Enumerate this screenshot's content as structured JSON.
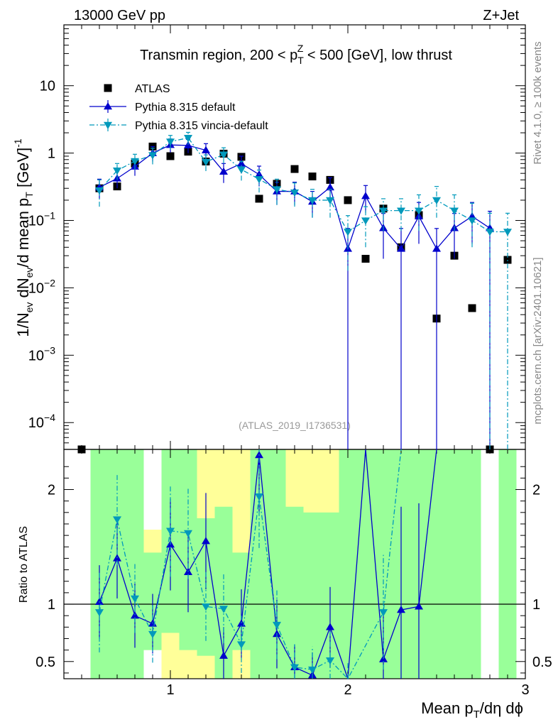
{
  "header": {
    "energy_label": "13000 GeV pp",
    "process_label": "Z+Jet"
  },
  "side_labels": {
    "rivet": "Rivet 4.1.0, ≥ 100k events",
    "source": "mcplots.cern.ch [arXiv:2401.10621]"
  },
  "chart_data": {
    "type": "scatter",
    "title_parts": {
      "pre": "Transmin region, 200 < p",
      "sub": "T",
      "sup": "Z",
      "post": " < 500 [GeV], low thrust"
    },
    "watermark": "(ATLAS_2019_I1736531)",
    "xlabel": {
      "main": "Mean p",
      "sub": "T",
      "rest": "/dη dϕ"
    },
    "ylabel_main": {
      "a": "1/N",
      "a_sub": "ev",
      "b": " dN",
      "b_sub": "ev",
      "c": "/d mean p",
      "c_sub": "T",
      "d": " [GeV]",
      "d_sup": "-1"
    },
    "ylabel_ratio": "Ratio to ATLAS",
    "xlim": [
      0.4,
      3.0
    ],
    "ylim_main": [
      4e-05,
      80
    ],
    "ylim_ratio": [
      0.35,
      2.35
    ],
    "x_ticks": [
      {
        "v": 1,
        "label": "1"
      },
      {
        "v": 2,
        "label": "2"
      },
      {
        "v": 3,
        "label": "3"
      }
    ],
    "y_ticks_main": [
      {
        "v": 10,
        "base": "10",
        "exp": ""
      },
      {
        "v": 1,
        "base": "1",
        "exp": ""
      },
      {
        "v": 0.1,
        "base": "10",
        "exp": "−1"
      },
      {
        "v": 0.01,
        "base": "10",
        "exp": "−2"
      },
      {
        "v": 0.001,
        "base": "10",
        "exp": "−3"
      },
      {
        "v": 0.0001,
        "base": "10",
        "exp": "−4"
      }
    ],
    "y_ticks_ratio": [
      {
        "v": 2,
        "label": "2"
      },
      {
        "v": 1,
        "label": "1"
      },
      {
        "v": 0.5,
        "label": "0.5"
      }
    ],
    "legend": [
      {
        "name": "ATLAS",
        "marker": "square",
        "color": "#000000"
      },
      {
        "name": "Pythia 8.315 default",
        "marker": "triangle-up",
        "color": "#0000cc"
      },
      {
        "name": "Pythia 8.315 vincia-default",
        "marker": "triangle-down",
        "color": "#0099bb"
      }
    ],
    "series": [
      {
        "name": "ATLAS",
        "x": [
          0.5,
          0.6,
          0.7,
          0.8,
          0.9,
          1.0,
          1.1,
          1.2,
          1.3,
          1.4,
          1.5,
          1.6,
          1.7,
          1.8,
          1.9,
          2.0,
          2.1,
          2.2,
          2.3,
          2.4,
          2.5,
          2.6,
          2.7,
          2.8,
          2.9
        ],
        "y": [
          4e-05,
          0.3,
          0.32,
          0.7,
          1.25,
          0.9,
          1.05,
          0.75,
          0.98,
          0.88,
          0.21,
          0.35,
          0.58,
          0.45,
          0.4,
          0.2,
          0.027,
          0.15,
          0.04,
          0.12,
          0.0035,
          0.03,
          0.005,
          4e-05,
          0.026
        ]
      },
      {
        "name": "Pythia 8.315 default",
        "x": [
          0.6,
          0.7,
          0.8,
          0.9,
          1.0,
          1.1,
          1.2,
          1.3,
          1.4,
          1.5,
          1.6,
          1.7,
          1.8,
          1.9,
          2.0,
          2.1,
          2.2,
          2.3,
          2.4,
          2.5,
          2.6,
          2.7,
          2.8
        ],
        "y": [
          0.31,
          0.42,
          0.63,
          1.0,
          1.32,
          1.3,
          1.1,
          0.53,
          0.7,
          0.48,
          0.27,
          0.27,
          0.19,
          0.31,
          0.038,
          0.23,
          0.077,
          0.038,
          0.115,
          0.038,
          0.077,
          0.115,
          0.077
        ],
        "err_lo": [
          0.1,
          0.12,
          0.17,
          0.25,
          0.3,
          0.3,
          0.28,
          0.17,
          0.2,
          0.16,
          0.1,
          0.1,
          0.08,
          0.12,
          0.038,
          0.1,
          0.05,
          0.038,
          0.07,
          0.038,
          0.05,
          0.07,
          0.077
        ],
        "err_hi": [
          0.1,
          0.12,
          0.17,
          0.25,
          0.3,
          0.3,
          0.28,
          0.17,
          0.2,
          0.16,
          0.1,
          0.1,
          0.08,
          0.12,
          0.038,
          0.1,
          0.05,
          0.038,
          0.07,
          0.038,
          0.05,
          0.07,
          0.06
        ]
      },
      {
        "name": "Pythia 8.315 vincia-default",
        "x": [
          0.6,
          0.7,
          0.8,
          0.9,
          1.0,
          1.1,
          1.2,
          1.3,
          1.4,
          1.5,
          1.6,
          1.7,
          1.8,
          1.9,
          2.0,
          2.1,
          2.2,
          2.3,
          2.4,
          2.5,
          2.6,
          2.7,
          2.8,
          2.9
        ],
        "y": [
          0.28,
          0.55,
          0.76,
          0.93,
          1.48,
          1.68,
          0.74,
          0.95,
          0.57,
          0.41,
          0.29,
          0.26,
          0.2,
          0.2,
          0.068,
          0.1,
          0.14,
          0.14,
          0.14,
          0.2,
          0.14,
          0.1,
          0.068,
          0.068
        ],
        "err_lo": [
          0.12,
          0.15,
          0.2,
          0.25,
          0.35,
          0.35,
          0.2,
          0.25,
          0.18,
          0.15,
          0.12,
          0.1,
          0.09,
          0.09,
          0.05,
          0.06,
          0.07,
          0.07,
          0.07,
          0.09,
          0.07,
          0.06,
          0.068,
          0.068
        ],
        "err_hi": [
          0.12,
          0.15,
          0.2,
          0.25,
          0.35,
          0.35,
          0.2,
          0.25,
          0.18,
          0.15,
          0.12,
          0.1,
          0.09,
          0.09,
          0.05,
          0.06,
          0.07,
          0.07,
          0.1,
          0.12,
          0.1,
          0.08,
          0.06,
          0.06
        ]
      }
    ],
    "ratio_series": [
      {
        "name": "Pythia 8.315 default",
        "x": [
          0.6,
          0.7,
          0.8,
          0.9,
          1.0,
          1.1,
          1.2,
          1.3,
          1.4,
          1.5,
          1.6,
          1.7,
          1.8,
          1.9,
          2.0,
          2.1,
          2.2,
          2.3,
          2.4,
          2.5
        ],
        "y": [
          1.02,
          1.4,
          0.9,
          0.83,
          1.52,
          1.28,
          1.55,
          0.55,
          0.83,
          2.3,
          0.74,
          0.45,
          0.38,
          0.8,
          0.1,
          8.0,
          0.52,
          0.95,
          0.98,
          8.0
        ],
        "err": [
          0.32,
          0.35,
          0.28,
          0.26,
          0.4,
          0.35,
          0.42,
          0.25,
          0.3,
          0.5,
          0.3,
          0.2,
          0.2,
          0.35,
          0.1,
          0.1,
          0.4,
          0.9,
          0.9,
          0.1
        ]
      },
      {
        "name": "Pythia 8.315 vincia-default",
        "x": [
          0.6,
          0.7,
          0.8,
          0.9,
          1.0,
          1.1,
          1.2,
          1.3,
          1.4,
          1.5,
          1.6,
          1.7,
          1.8,
          1.9,
          2.0,
          2.2,
          2.3
        ],
        "y": [
          0.93,
          1.74,
          1.05,
          0.74,
          1.64,
          1.62,
          0.98,
          0.96,
          0.65,
          1.94,
          0.82,
          0.45,
          0.43,
          0.51,
          0.3,
          0.93,
          3.5
        ],
        "err": [
          0.35,
          0.4,
          0.3,
          0.25,
          0.4,
          0.4,
          0.3,
          0.3,
          0.25,
          0.45,
          0.3,
          0.2,
          0.2,
          0.25,
          0.2,
          0.5,
          1.0
        ]
      }
    ],
    "uncertainty_bands": {
      "outer_color": "#ffff99",
      "inner_color": "#99ff99",
      "bins": [
        {
          "x0": 0.55,
          "x1": 0.65,
          "outer": [
            0.35,
            2.35
          ],
          "inner": [
            0.35,
            2.35
          ]
        },
        {
          "x0": 0.65,
          "x1": 0.75,
          "outer": [
            0.35,
            2.35
          ],
          "inner": [
            0.35,
            2.35
          ]
        },
        {
          "x0": 0.75,
          "x1": 0.85,
          "outer": [
            0.35,
            2.35
          ],
          "inner": [
            0.35,
            2.35
          ]
        },
        {
          "x0": 0.85,
          "x1": 0.95,
          "outer": [
            0.6,
            1.65
          ],
          "inner": [
            0.6,
            1.45
          ]
        },
        {
          "x0": 0.95,
          "x1": 1.05,
          "outer": [
            0.35,
            2.35
          ],
          "inner": [
            0.75,
            2.35
          ]
        },
        {
          "x0": 1.05,
          "x1": 1.15,
          "outer": [
            0.35,
            2.35
          ],
          "inner": [
            0.6,
            2.35
          ]
        },
        {
          "x0": 1.15,
          "x1": 1.25,
          "outer": [
            0.35,
            2.35
          ],
          "inner": [
            0.55,
            1.75
          ]
        },
        {
          "x0": 1.25,
          "x1": 1.35,
          "outer": [
            0.35,
            2.35
          ],
          "inner": [
            0.35,
            1.85
          ]
        },
        {
          "x0": 1.35,
          "x1": 1.45,
          "outer": [
            0.35,
            2.35
          ],
          "inner": [
            0.6,
            1.45
          ]
        },
        {
          "x0": 1.45,
          "x1": 1.55,
          "outer": [
            0.35,
            2.35
          ],
          "inner": [
            0.35,
            2.35
          ]
        },
        {
          "x0": 1.55,
          "x1": 1.65,
          "outer": [
            0.35,
            2.35
          ],
          "inner": [
            0.35,
            2.35
          ]
        },
        {
          "x0": 1.65,
          "x1": 1.75,
          "outer": [
            0.35,
            2.35
          ],
          "inner": [
            0.35,
            1.85
          ]
        },
        {
          "x0": 1.75,
          "x1": 1.85,
          "outer": [
            0.35,
            2.35
          ],
          "inner": [
            0.35,
            1.8
          ]
        },
        {
          "x0": 1.85,
          "x1": 1.95,
          "outer": [
            0.35,
            2.35
          ],
          "inner": [
            0.35,
            1.8
          ]
        },
        {
          "x0": 1.95,
          "x1": 2.05,
          "outer": [
            0.35,
            2.35
          ],
          "inner": [
            0.35,
            2.35
          ]
        },
        {
          "x0": 2.05,
          "x1": 2.15,
          "outer": [
            0.35,
            2.35
          ],
          "inner": [
            0.35,
            2.35
          ]
        },
        {
          "x0": 2.15,
          "x1": 2.25,
          "outer": [
            0.35,
            2.35
          ],
          "inner": [
            0.35,
            2.35
          ]
        },
        {
          "x0": 2.25,
          "x1": 2.35,
          "outer": [
            0.35,
            2.35
          ],
          "inner": [
            0.35,
            2.35
          ]
        },
        {
          "x0": 2.35,
          "x1": 2.45,
          "outer": [
            0.35,
            2.35
          ],
          "inner": [
            0.35,
            2.35
          ]
        },
        {
          "x0": 2.45,
          "x1": 2.55,
          "outer": [
            0.35,
            2.35
          ],
          "inner": [
            0.35,
            2.35
          ]
        },
        {
          "x0": 2.55,
          "x1": 2.65,
          "outer": [
            0.35,
            2.35
          ],
          "inner": [
            0.35,
            2.35
          ]
        },
        {
          "x0": 2.65,
          "x1": 2.75,
          "outer": [
            0.35,
            2.35
          ],
          "inner": [
            0.35,
            2.35
          ]
        },
        {
          "x0": 2.85,
          "x1": 2.95,
          "outer": [
            0.35,
            2.35
          ],
          "inner": [
            0.35,
            2.35
          ]
        }
      ]
    }
  }
}
